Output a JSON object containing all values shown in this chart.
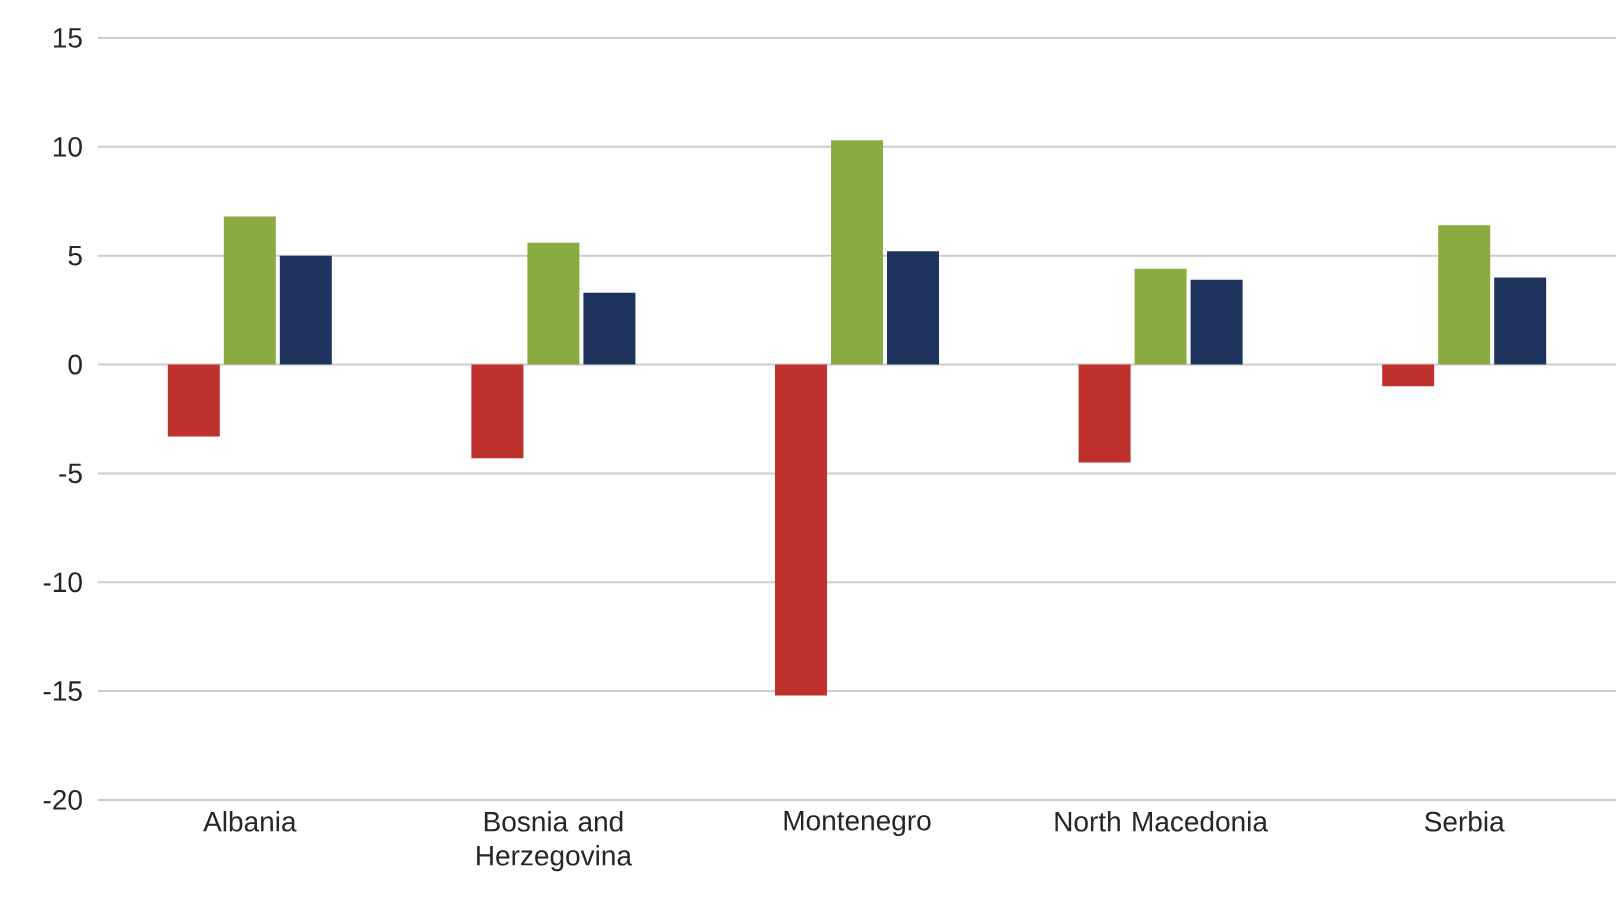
{
  "chart_data": {
    "type": "bar",
    "categories": [
      "Albania",
      "Bosnia and Herzegovina",
      "Montenegro",
      "North Macedonia",
      "Serbia"
    ],
    "series": [
      {
        "color": "#be312c",
        "values": [
          -3.3,
          -4.3,
          -15.2,
          -4.5,
          -1.0
        ]
      },
      {
        "color": "#8aab3f",
        "values": [
          6.8,
          5.6,
          10.3,
          4.4,
          6.4
        ]
      },
      {
        "color": "#1e335e",
        "values": [
          5.0,
          3.3,
          5.2,
          3.9,
          4.0
        ]
      }
    ],
    "ylim": [
      -20,
      15
    ],
    "yticks": [
      -20,
      -15,
      -10,
      -5,
      0,
      5,
      10,
      15
    ],
    "grid": "y"
  }
}
